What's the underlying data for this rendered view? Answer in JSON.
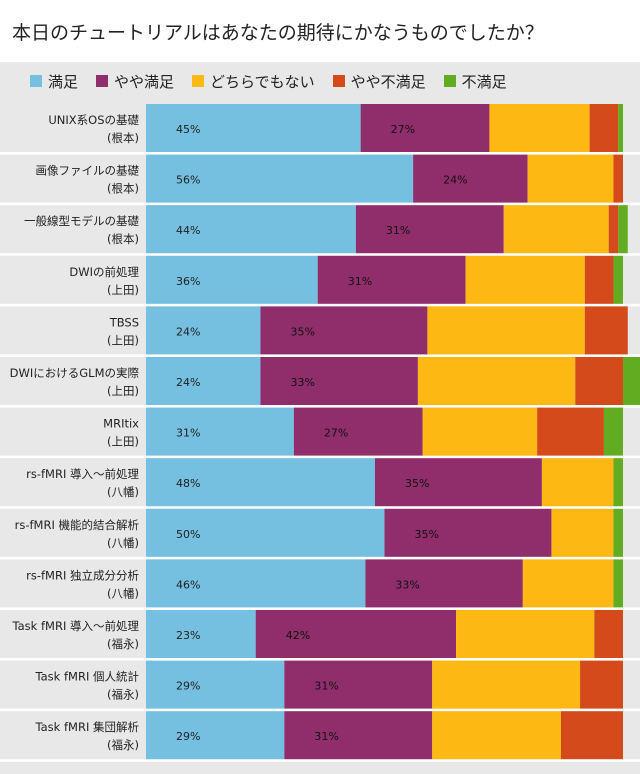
{
  "chart_data": {
    "type": "bar",
    "orientation": "horizontal",
    "stacked": true,
    "title": "本日のチュートリアルはあなたの期待にかなうものでしたか？",
    "xlim": [
      0,
      100
    ],
    "xlabel": "",
    "ylabel": "",
    "legend_position": "top",
    "legend": [
      "満足",
      "やや満足",
      "どちらでもない",
      "やや不満足",
      "不満足"
    ],
    "colors": [
      "#75bfe0",
      "#902e6c",
      "#fdb813",
      "#d54a1b",
      "#62ac21"
    ],
    "categories": [
      {
        "line1": "UNIX系OSの基礎",
        "line2": "(根本)"
      },
      {
        "line1": "画像ファイルの基礎",
        "line2": "(根本)"
      },
      {
        "line1": "一般線型モデルの基礎",
        "line2": "(根本)"
      },
      {
        "line1": "DWIの前処理",
        "line2": "(上田)"
      },
      {
        "line1": "TBSS",
        "line2": "(上田)"
      },
      {
        "line1": "DWIにおけるGLMの実際",
        "line2": "(上田)"
      },
      {
        "line1": "MRItix",
        "line2": "(上田)"
      },
      {
        "line1": "rs-fMRI 導入～前処理",
        "line2": "(八幡)"
      },
      {
        "line1": "rs-fMRI 機能的結合解析",
        "line2": "(八幡)"
      },
      {
        "line1": "rs-fMRI 独立成分分析",
        "line2": "(八幡)"
      },
      {
        "line1": "Task fMRI 導入～前処理",
        "line2": "(福永)"
      },
      {
        "line1": "Task fMRI 個人統計",
        "line2": "(福永)"
      },
      {
        "line1": "Task fMRI 集団解析",
        "line2": "(福永)"
      }
    ],
    "series": [
      {
        "name": "満足",
        "values": [
          45,
          56,
          44,
          36,
          24,
          24,
          31,
          48,
          50,
          46,
          23,
          29,
          29
        ]
      },
      {
        "name": "やや満足",
        "values": [
          27,
          24,
          31,
          31,
          35,
          33,
          27,
          35,
          35,
          33,
          42,
          31,
          31
        ]
      },
      {
        "name": "どちらでもない",
        "values": [
          21,
          18,
          22,
          25,
          33,
          33,
          24,
          15,
          13,
          19,
          29,
          31,
          27
        ]
      },
      {
        "name": "やや不満足",
        "values": [
          6,
          2,
          2,
          6,
          9,
          10,
          14,
          0,
          0,
          0,
          6,
          9,
          13
        ]
      },
      {
        "name": "不満足",
        "values": [
          1,
          0,
          2,
          2,
          0,
          4,
          4,
          2,
          2,
          2,
          0,
          0,
          0
        ]
      }
    ],
    "data_labels": [
      [
        "45%",
        "27%"
      ],
      [
        "56%",
        "24%"
      ],
      [
        "44%",
        "31%"
      ],
      [
        "36%",
        "31%"
      ],
      [
        "24%",
        "35%"
      ],
      [
        "24%",
        "33%"
      ],
      [
        "31%",
        "27%"
      ],
      [
        "48%",
        "35%"
      ],
      [
        "50%",
        "35%"
      ],
      [
        "46%",
        "33%"
      ],
      [
        "23%",
        "42%"
      ],
      [
        "29%",
        "31%"
      ],
      [
        "29%",
        "31%"
      ]
    ]
  }
}
